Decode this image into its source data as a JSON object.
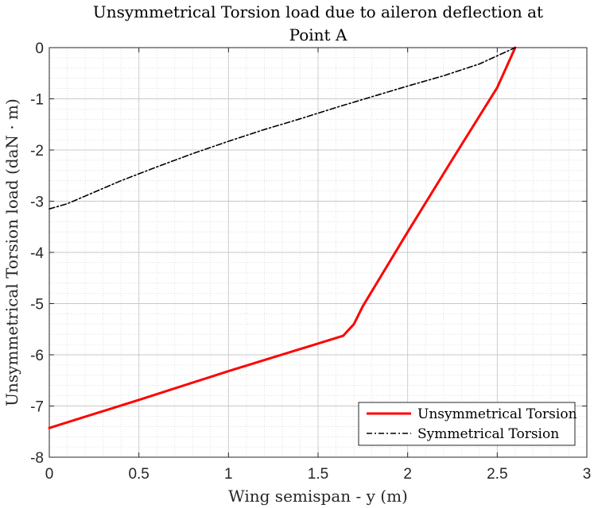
{
  "chart_data": {
    "type": "line",
    "title_lines": [
      "Unsymmetrical Torsion load due to aileron deflection at",
      "Point A"
    ],
    "xlabel": "Wing semispan - y (m)",
    "ylabel": "Unsymmetrical Torsion load (daN · m)",
    "xlim": [
      0,
      3
    ],
    "ylim": [
      -8,
      0
    ],
    "xticks": [
      0,
      0.5,
      1,
      1.5,
      2,
      2.5,
      3
    ],
    "xtick_labels": [
      "0",
      "0.5",
      "1",
      "1.5",
      "2",
      "2.5",
      "3"
    ],
    "yticks": [
      0,
      -1,
      -2,
      -3,
      -4,
      -5,
      -6,
      -7,
      -8
    ],
    "ytick_labels": [
      "0",
      "-1",
      "-2",
      "-3",
      "-4",
      "-5",
      "-6",
      "-7",
      "-8"
    ],
    "grid": true,
    "minor_grid": true,
    "legend_position": "bottom-right",
    "series": [
      {
        "name": "Unsymmetrical Torsion",
        "color": "#ff0000",
        "style": "solid",
        "x": [
          0,
          0.5,
          1.0,
          1.5,
          1.64,
          1.7,
          1.75,
          2.0,
          2.25,
          2.5,
          2.6
        ],
        "y": [
          -7.43,
          -6.88,
          -6.32,
          -5.78,
          -5.63,
          -5.4,
          -5.05,
          -3.6,
          -2.18,
          -0.78,
          0.0
        ]
      },
      {
        "name": "Symmetrical Torsion",
        "color": "#000000",
        "style": "dashdot",
        "x": [
          0,
          0.1,
          0.2,
          0.4,
          0.6,
          0.8,
          1.0,
          1.2,
          1.4,
          1.6,
          1.8,
          2.0,
          2.2,
          2.4,
          2.6
        ],
        "y": [
          -3.15,
          -3.05,
          -2.9,
          -2.6,
          -2.33,
          -2.07,
          -1.83,
          -1.6,
          -1.39,
          -1.17,
          -0.96,
          -0.75,
          -0.55,
          -0.32,
          0.0
        ]
      }
    ]
  }
}
